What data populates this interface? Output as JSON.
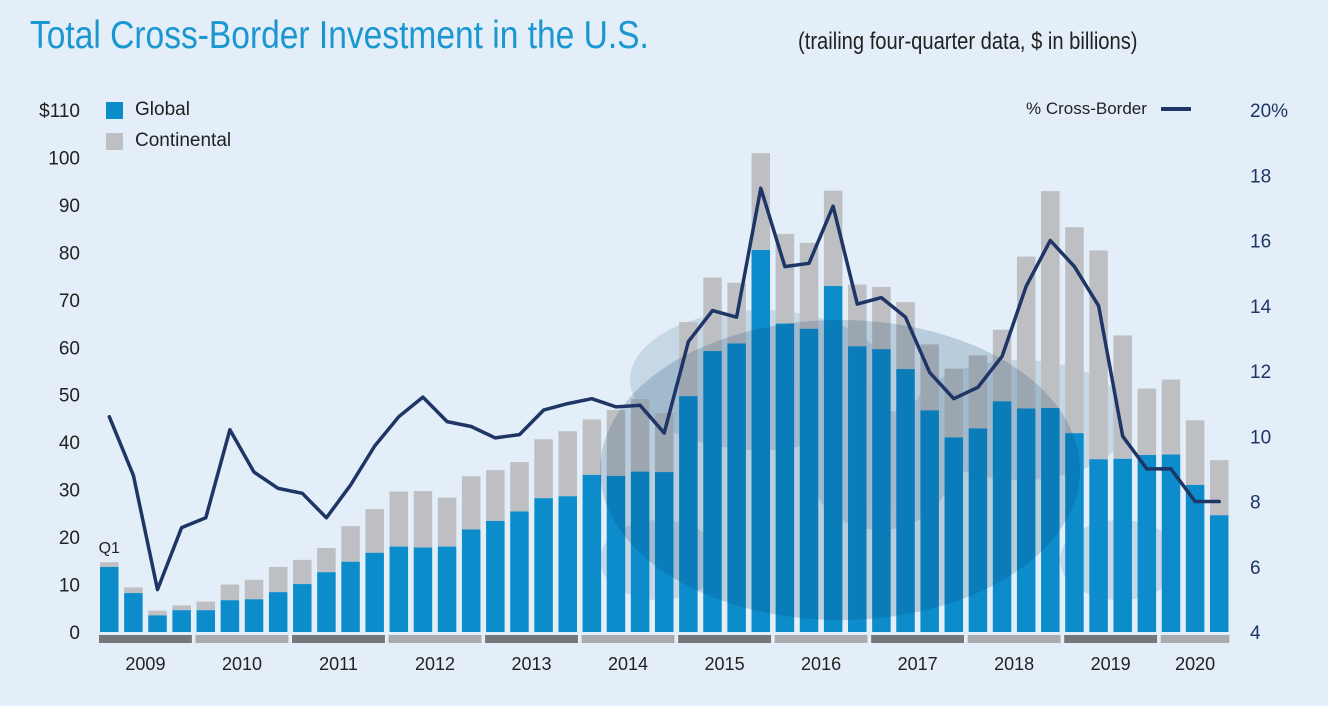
{
  "title": "Total Cross-Border Investment in the U.S.",
  "subtitle": "(trailing four-quarter data, $ in billions)",
  "colors": {
    "global": "#0d8ccc",
    "global_dark": "#0b6fa6",
    "continental": "#bdbfc3",
    "line": "#1e3566",
    "year_bar_dark": "#74777c",
    "year_bar_light": "#a9abaf"
  },
  "chart_data": {
    "type": "bar",
    "stacked": true,
    "first_bar_label": "Q1",
    "legend": {
      "global": "Global",
      "continental": "Continental",
      "line": "% Cross-Border"
    },
    "left_axis": {
      "ticks": [
        "$110",
        "100",
        "90",
        "80",
        "70",
        "60",
        "50",
        "40",
        "30",
        "20",
        "10",
        "0"
      ],
      "range": [
        0,
        110
      ]
    },
    "right_axis": {
      "ticks": [
        "20%",
        "18",
        "16",
        "14",
        "12",
        "10",
        "8",
        "6",
        "4"
      ],
      "range": [
        4,
        20
      ]
    },
    "years": [
      "2009",
      "2010",
      "2011",
      "2012",
      "2013",
      "2014",
      "2015",
      "2016",
      "2017",
      "2018",
      "2019",
      "2020"
    ],
    "series": [
      {
        "name": "Global",
        "values": [
          13.7,
          8.2,
          3.5,
          4.6,
          4.6,
          6.7,
          6.9,
          8.4,
          10.1,
          12.6,
          14.8,
          16.7,
          18.0,
          17.8,
          18.0,
          21.6,
          23.4,
          25.4,
          28.2,
          28.6,
          33.1,
          32.9,
          33.8,
          33.7,
          49.7,
          59.2,
          60.8,
          80.5,
          65.0,
          63.9,
          72.9,
          60.2,
          59.6,
          55.4,
          46.7,
          41.0,
          42.9,
          48.6,
          47.1,
          47.2,
          41.9,
          36.4,
          36.5,
          37.3,
          37.4,
          31.0,
          24.6
        ]
      },
      {
        "name": "Continental",
        "values": [
          1.0,
          1.2,
          1.0,
          1.0,
          1.8,
          3.3,
          4.1,
          5.3,
          5.1,
          5.1,
          7.5,
          9.2,
          11.6,
          11.9,
          10.3,
          11.2,
          10.7,
          10.4,
          12.4,
          13.7,
          11.7,
          13.9,
          15.3,
          12.4,
          15.6,
          15.5,
          12.8,
          20.4,
          18.9,
          18.1,
          20.1,
          13.0,
          13.1,
          14.1,
          13.9,
          14.5,
          15.4,
          15.1,
          32.0,
          45.7,
          43.4,
          44.0,
          26.0,
          14.0,
          15.8,
          13.6,
          11.6
        ]
      },
      {
        "name": "% Cross-Border",
        "axis": "right",
        "values": [
          10.6,
          8.8,
          5.3,
          7.2,
          7.5,
          10.2,
          8.9,
          8.4,
          8.25,
          7.5,
          8.5,
          9.7,
          10.6,
          11.2,
          10.45,
          10.3,
          9.95,
          10.05,
          10.8,
          11.0,
          11.15,
          10.9,
          10.95,
          10.1,
          12.9,
          13.85,
          13.65,
          17.6,
          15.2,
          15.3,
          17.05,
          14.05,
          14.25,
          13.65,
          11.95,
          11.15,
          11.5,
          12.45,
          14.6,
          16.0,
          15.2,
          14.0,
          10.0,
          9.0,
          9.0,
          8.0,
          8.0
        ]
      }
    ],
    "quarters_per_year": [
      4,
      4,
      4,
      4,
      4,
      4,
      4,
      4,
      4,
      4,
      4,
      3
    ]
  }
}
